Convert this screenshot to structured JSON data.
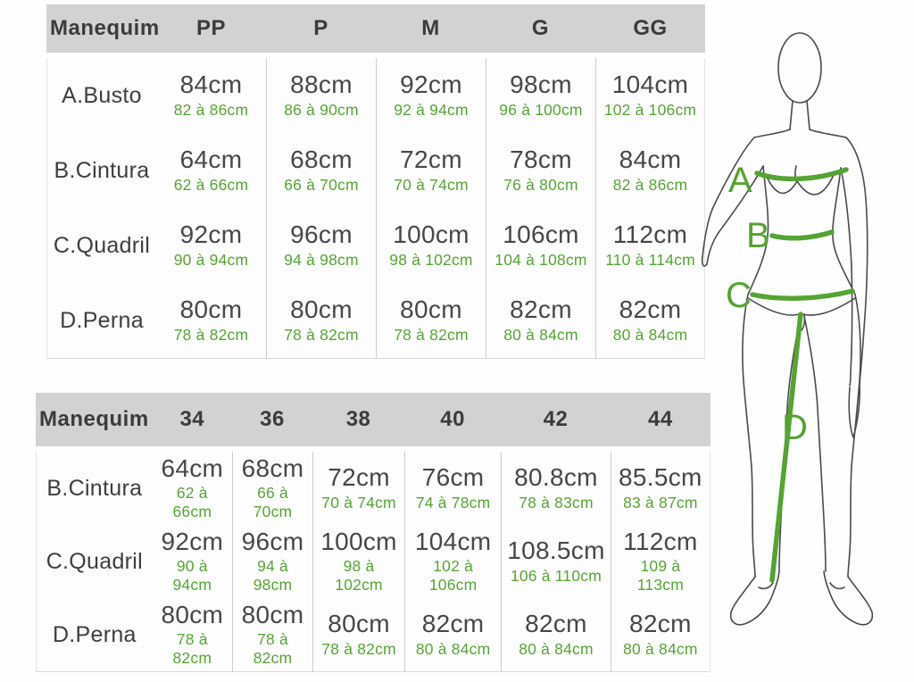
{
  "colors": {
    "header_bg": "#d2d2d2",
    "header_text": "#3b3b3b",
    "label_text": "#3e3e3e",
    "value_text": "#474747",
    "range_text": "#57a436",
    "divider": "#cccccc",
    "figure_line": "#55a332",
    "figure_outline": "#4b4b4d"
  },
  "chart_data": [
    {
      "type": "table",
      "title": "Tabela de medidas - manequim por letras",
      "header": [
        "Manequim",
        "PP",
        "P",
        "M",
        "G",
        "GG"
      ],
      "rows": [
        {
          "label": "A.Busto",
          "cells": [
            {
              "v": "84cm",
              "r": "82 à 86cm"
            },
            {
              "v": "88cm",
              "r": "86 à 90cm"
            },
            {
              "v": "92cm",
              "r": "92 à 94cm"
            },
            {
              "v": "98cm",
              "r": "96 à 100cm"
            },
            {
              "v": "104cm",
              "r": "102 à 106cm"
            }
          ]
        },
        {
          "label": "B.Cintura",
          "cells": [
            {
              "v": "64cm",
              "r": "62 à 66cm"
            },
            {
              "v": "68cm",
              "r": "66 à 70cm"
            },
            {
              "v": "72cm",
              "r": "70 à 74cm"
            },
            {
              "v": "78cm",
              "r": "76 à 80cm"
            },
            {
              "v": "84cm",
              "r": "82 à 86cm"
            }
          ]
        },
        {
          "label": "C.Quadril",
          "cells": [
            {
              "v": "92cm",
              "r": "90 à 94cm"
            },
            {
              "v": "96cm",
              "r": "94 à 98cm"
            },
            {
              "v": "100cm",
              "r": "98 à 102cm"
            },
            {
              "v": "106cm",
              "r": "104 à 108cm"
            },
            {
              "v": "112cm",
              "r": "110 à 114cm"
            }
          ]
        },
        {
          "label": "D.Perna",
          "cells": [
            {
              "v": "80cm",
              "r": "78 à 82cm"
            },
            {
              "v": "80cm",
              "r": "78 à 82cm"
            },
            {
              "v": "80cm",
              "r": "78 à 82cm"
            },
            {
              "v": "82cm",
              "r": "80 à 84cm"
            },
            {
              "v": "82cm",
              "r": "80 à 84cm"
            }
          ]
        }
      ]
    },
    {
      "type": "table",
      "title": "Tabela de medidas - manequim por números",
      "header": [
        "Manequim",
        "34",
        "36",
        "38",
        "40",
        "42",
        "44"
      ],
      "rows": [
        {
          "label": "B.Cintura",
          "cells": [
            {
              "v": "64cm",
              "r": "62 à 66cm"
            },
            {
              "v": "68cm",
              "r": "66 à 70cm"
            },
            {
              "v": "72cm",
              "r": "70 à 74cm"
            },
            {
              "v": "76cm",
              "r": "74 à 78cm"
            },
            {
              "v": "80.8cm",
              "r": "78 à 83cm"
            },
            {
              "v": "85.5cm",
              "r": "83 à 87cm"
            }
          ]
        },
        {
          "label": "C.Quadril",
          "cells": [
            {
              "v": "92cm",
              "r": "90 à 94cm"
            },
            {
              "v": "96cm",
              "r": "94 à 98cm"
            },
            {
              "v": "100cm",
              "r": "98 à 102cm"
            },
            {
              "v": "104cm",
              "r": "102 à 106cm"
            },
            {
              "v": "108.5cm",
              "r": "106 à 110cm"
            },
            {
              "v": "112cm",
              "r": "109 à 113cm"
            }
          ]
        },
        {
          "label": "D.Perna",
          "cells": [
            {
              "v": "80cm",
              "r": "78 à 82cm"
            },
            {
              "v": "80cm",
              "r": "78 à 82cm"
            },
            {
              "v": "80cm",
              "r": "78 à 82cm"
            },
            {
              "v": "82cm",
              "r": "80 à 84cm"
            },
            {
              "v": "82cm",
              "r": "80 à 84cm"
            },
            {
              "v": "82cm",
              "r": "80 à 84cm"
            }
          ]
        }
      ]
    }
  ],
  "figure": {
    "measure_labels": [
      "A",
      "B",
      "C",
      "D"
    ]
  }
}
